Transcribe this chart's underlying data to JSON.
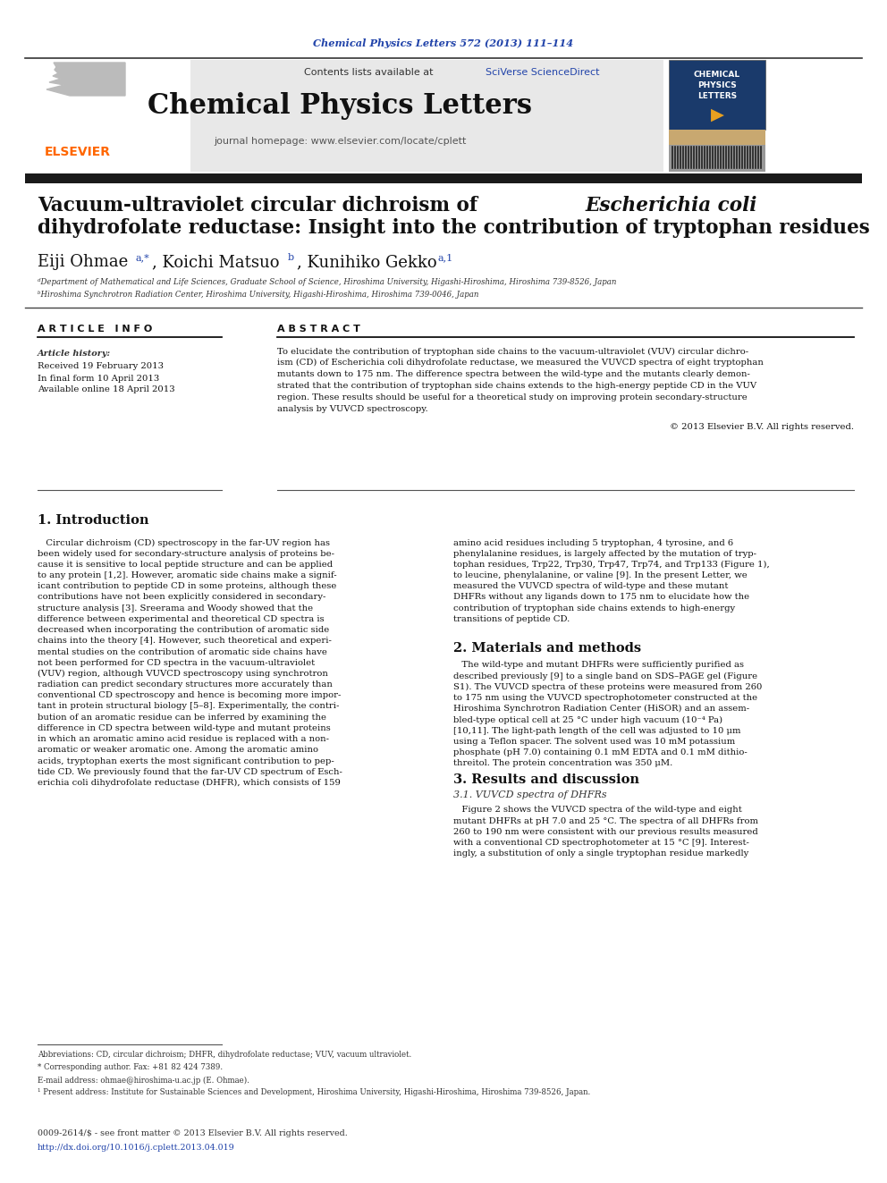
{
  "journal_ref": "Chemical Physics Letters 572 (2013) 111–114",
  "journal_name": "Chemical Physics Letters",
  "journal_homepage": "journal homepage: www.elsevier.com/locate/cplett",
  "contents_line": "Contents lists available at SciVerse ScienceDirect",
  "article_info_header": "A R T I C L E   I N F O",
  "abstract_header": "A B S T R A C T",
  "article_history_label": "Article history:",
  "received": "Received 19 February 2013",
  "final_form": "In final form 10 April 2013",
  "available": "Available online 18 April 2013",
  "copyright": "© 2013 Elsevier B.V. All rights reserved.",
  "intro_heading": "1. Introduction",
  "methods_heading": "2. Materials and methods",
  "results_heading": "3. Results and discussion",
  "results_subheading": "3.1. VUVCD spectra of DHFRs",
  "affil_a": "ᵈDepartment of Mathematical and Life Sciences, Graduate School of Science, Hiroshima University, Higashi-Hiroshima, Hiroshima 739-8526, Japan",
  "affil_b": "ᵇHiroshima Synchrotron Radiation Center, Hiroshima University, Higashi-Hiroshima, Hiroshima 739-0046, Japan",
  "footnote_abbrev": "Abbreviations: CD, circular dichroism; DHFR, dihydrofolate reductase; VUV, vacuum ultraviolet.",
  "footnote_corresp": "* Corresponding author. Fax: +81 82 424 7389.",
  "footnote_email": "E-mail address: ohmae@hiroshima-u.ac.jp (E. Ohmae).",
  "footnote_present": "¹ Present address: Institute for Sustainable Sciences and Development, Hiroshima University, Higashi-Hiroshima, Hiroshima 739-8526, Japan.",
  "issn": "0009-2614/$ - see front matter © 2013 Elsevier B.V. All rights reserved.",
  "doi": "http://dx.doi.org/10.1016/j.cplett.2013.04.019",
  "color_journal_ref": "#2244aa",
  "color_elsevier": "#FF6600",
  "color_sciverse": "#2244aa",
  "color_thick_bar": "#1a1a1a",
  "color_header_bg": "#e8e8e8",
  "color_text": "#111111",
  "color_blue_link": "#2244aa",
  "intro_left_lines": [
    "   Circular dichroism (CD) spectroscopy in the far-UV region has",
    "been widely used for secondary-structure analysis of proteins be-",
    "cause it is sensitive to local peptide structure and can be applied",
    "to any protein [1,2]. However, aromatic side chains make a signif-",
    "icant contribution to peptide CD in some proteins, although these",
    "contributions have not been explicitly considered in secondary-",
    "structure analysis [3]. Sreerama and Woody showed that the",
    "difference between experimental and theoretical CD spectra is",
    "decreased when incorporating the contribution of aromatic side",
    "chains into the theory [4]. However, such theoretical and experi-",
    "mental studies on the contribution of aromatic side chains have",
    "not been performed for CD spectra in the vacuum-ultraviolet",
    "(VUV) region, although VUVCD spectroscopy using synchrotron",
    "radiation can predict secondary structures more accurately than",
    "conventional CD spectroscopy and hence is becoming more impor-",
    "tant in protein structural biology [5–8]. Experimentally, the contri-",
    "bution of an aromatic residue can be inferred by examining the",
    "difference in CD spectra between wild-type and mutant proteins",
    "in which an aromatic amino acid residue is replaced with a non-",
    "aromatic or weaker aromatic one. Among the aromatic amino",
    "acids, tryptophan exerts the most significant contribution to pep-",
    "tide CD. We previously found that the far-UV CD spectrum of Esch-",
    "erichia coli dihydrofolate reductase (DHFR), which consists of 159"
  ],
  "intro_right_lines": [
    "amino acid residues including 5 tryptophan, 4 tyrosine, and 6",
    "phenylalanine residues, is largely affected by the mutation of tryp-",
    "tophan residues, Trp22, Trp30, Trp47, Trp74, and Trp133 (Figure 1),",
    "to leucine, phenylalanine, or valine [9]. In the present Letter, we",
    "measured the VUVCD spectra of wild-type and these mutant",
    "DHFRs without any ligands down to 175 nm to elucidate how the",
    "contribution of tryptophan side chains extends to high-energy",
    "transitions of peptide CD."
  ],
  "methods_lines": [
    "   The wild-type and mutant DHFRs were sufficiently purified as",
    "described previously [9] to a single band on SDS–PAGE gel (Figure",
    "S1). The VUVCD spectra of these proteins were measured from 260",
    "to 175 nm using the VUVCD spectrophotometer constructed at the",
    "Hiroshima Synchrotron Radiation Center (HiSOR) and an assem-",
    "bled-type optical cell at 25 °C under high vacuum (10⁻⁴ Pa)",
    "[10,11]. The light-path length of the cell was adjusted to 10 μm",
    "using a Teflon spacer. The solvent used was 10 mM potassium",
    "phosphate (pH 7.0) containing 0.1 mM EDTA and 0.1 mM dithio-",
    "threitol. The protein concentration was 350 μM."
  ],
  "results_lines": [
    "   Figure 2 shows the VUVCD spectra of the wild-type and eight",
    "mutant DHFRs at pH 7.0 and 25 °C. The spectra of all DHFRs from",
    "260 to 190 nm were consistent with our previous results measured",
    "with a conventional CD spectrophotometer at 15 °C [9]. Interest-",
    "ingly, a substitution of only a single tryptophan residue markedly"
  ],
  "abstract_lines": [
    "To elucidate the contribution of tryptophan side chains to the vacuum-ultraviolet (VUV) circular dichro-",
    "ism (CD) of Escherichia coli dihydrofolate reductase, we measured the VUVCD spectra of eight tryptophan",
    "mutants down to 175 nm. The difference spectra between the wild-type and the mutants clearly demon-",
    "strated that the contribution of tryptophan side chains extends to the high-energy peptide CD in the VUV",
    "region. These results should be useful for a theoretical study on improving protein secondary-structure",
    "analysis by VUVCD spectroscopy."
  ]
}
